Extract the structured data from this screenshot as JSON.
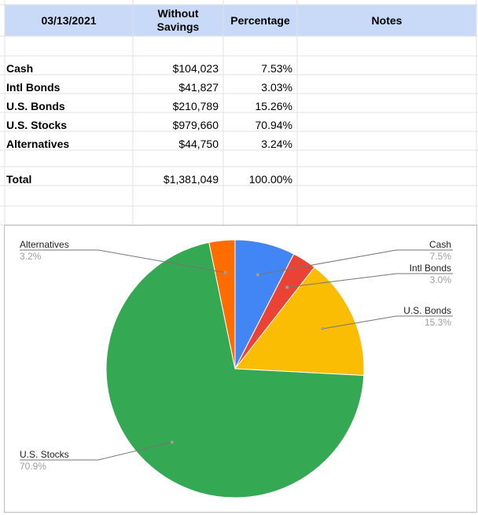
{
  "sheet": {
    "header": {
      "date": "03/13/2021",
      "without_savings_line1": "Without",
      "without_savings_line2": "Savings",
      "percentage": "Percentage",
      "notes": "Notes"
    },
    "rows": [
      {
        "label": "Cash",
        "amount": "$104,023",
        "pct": "7.53%"
      },
      {
        "label": "Intl Bonds",
        "amount": "$41,827",
        "pct": "3.03%"
      },
      {
        "label": "U.S. Bonds",
        "amount": "$210,789",
        "pct": "15.26%"
      },
      {
        "label": "U.S. Stocks",
        "amount": "$979,660",
        "pct": "70.94%"
      },
      {
        "label": "Alternatives",
        "amount": "$44,750",
        "pct": "3.24%"
      }
    ],
    "total": {
      "label": "Total",
      "amount": "$1,381,049",
      "pct": "100.00%"
    },
    "header_bg": "#c9daf8"
  },
  "chart_data": {
    "type": "pie",
    "categories": [
      "Cash",
      "Intl Bonds",
      "U.S. Bonds",
      "U.S. Stocks",
      "Alternatives"
    ],
    "values": [
      104023,
      41827,
      210789,
      979660,
      44750
    ],
    "labels": [
      "7.5%",
      "3.0%",
      "15.3%",
      "70.9%",
      "3.2%"
    ],
    "colors": [
      "#4285f4",
      "#ea4335",
      "#fbbc04",
      "#34a853",
      "#ff6d01"
    ],
    "start_angle_deg": 0,
    "direction": "clockwise",
    "title": "",
    "legend": "labeled slices"
  }
}
